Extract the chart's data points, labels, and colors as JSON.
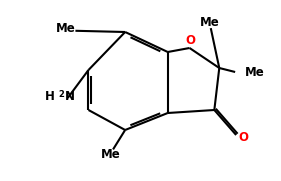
{
  "bg_color": "#ffffff",
  "line_color": "#000000",
  "oxygen_color": "#ff0000",
  "font_size": 8.5,
  "line_width": 1.5,
  "figsize": [
    2.81,
    1.81
  ],
  "dpi": 100,
  "xlim": [
    0,
    10
  ],
  "ylim": [
    0,
    6.5
  ]
}
